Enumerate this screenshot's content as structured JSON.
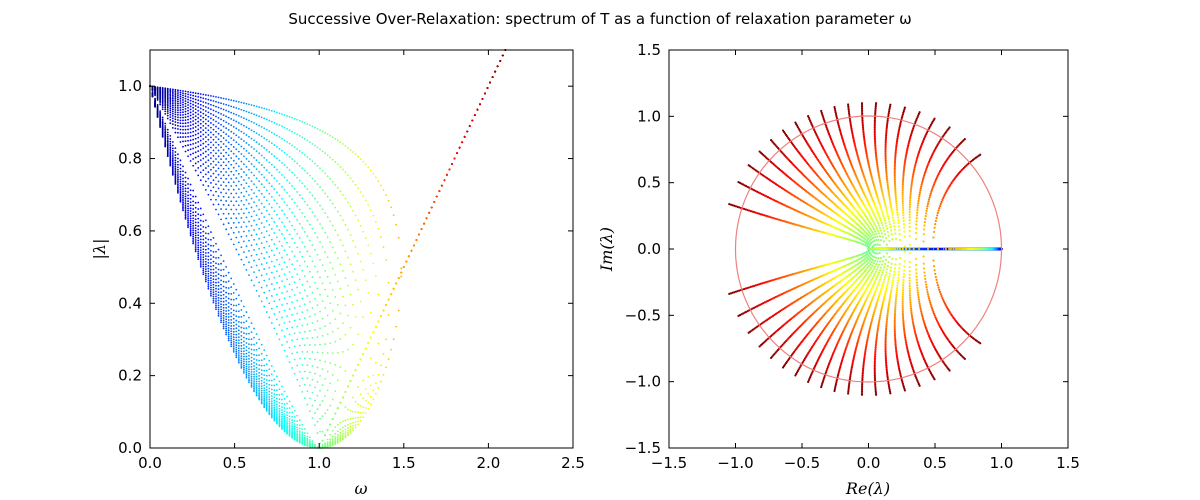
{
  "figure": {
    "title": "Successive Over-Relaxation: spectrum of T as a function of relaxation parameter ω"
  },
  "chart_data": [
    {
      "type": "scatter",
      "title": "",
      "xlabel": "ω",
      "ylabel": "|λ|",
      "xlim": [
        0,
        2.5
      ],
      "ylim": [
        0,
        1.1
      ],
      "xticks": [
        "0.0",
        "0.5",
        "1.0",
        "1.5",
        "2.0",
        "2.5"
      ],
      "yticks": [
        "0.0",
        "0.2",
        "0.4",
        "0.6",
        "0.8",
        "1.0"
      ],
      "grid": false,
      "colormap": "jet",
      "color_encodes": "ω (blue = 0 → red = 2.1)",
      "omega_range": [
        0,
        2.1
      ],
      "n_curves": 20,
      "rho_jacobi_min": 0.0,
      "rho_jacobi_max": 0.938,
      "markers": "small dots"
    },
    {
      "type": "scatter",
      "title": "",
      "xlabel": "Re(λ)",
      "ylabel": "Im(λ)",
      "xlim": [
        -1.5,
        1.5
      ],
      "ylim": [
        -1.5,
        1.5
      ],
      "xticks": [
        "−1.5",
        "−1.0",
        "−0.5",
        "0.0",
        "0.5",
        "1.0",
        "1.5"
      ],
      "yticks": [
        "−1.5",
        "−1.0",
        "−0.5",
        "0.0",
        "0.5",
        "1.0",
        "1.5"
      ],
      "grid": false,
      "colormap": "jet",
      "color_encodes": "ω (blue = 0 → red = 2.1)",
      "unit_circle": {
        "radius": 1.0,
        "color": "#f08080"
      }
    }
  ]
}
